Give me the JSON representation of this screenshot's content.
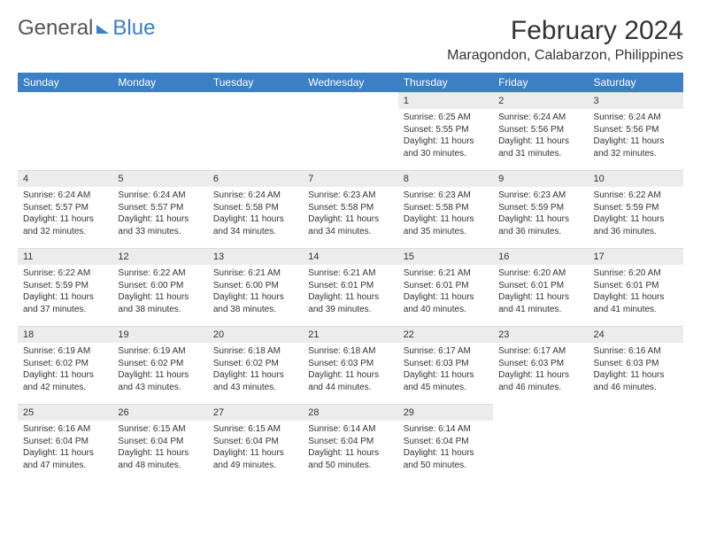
{
  "logo": {
    "part1": "General",
    "part2": "Blue"
  },
  "title": "February 2024",
  "location": "Maragondon, Calabarzon, Philippines",
  "colors": {
    "header_bg": "#3b7fc4",
    "header_text": "#ffffff",
    "daynum_bg": "#ececec",
    "text": "#333333",
    "page_bg": "#ffffff"
  },
  "weekdays": [
    "Sunday",
    "Monday",
    "Tuesday",
    "Wednesday",
    "Thursday",
    "Friday",
    "Saturday"
  ],
  "weeks": [
    [
      {
        "empty": true
      },
      {
        "empty": true
      },
      {
        "empty": true
      },
      {
        "empty": true
      },
      {
        "day": "1",
        "sunrise": "Sunrise: 6:25 AM",
        "sunset": "Sunset: 5:55 PM",
        "daylight": "Daylight: 11 hours and 30 minutes."
      },
      {
        "day": "2",
        "sunrise": "Sunrise: 6:24 AM",
        "sunset": "Sunset: 5:56 PM",
        "daylight": "Daylight: 11 hours and 31 minutes."
      },
      {
        "day": "3",
        "sunrise": "Sunrise: 6:24 AM",
        "sunset": "Sunset: 5:56 PM",
        "daylight": "Daylight: 11 hours and 32 minutes."
      }
    ],
    [
      {
        "day": "4",
        "sunrise": "Sunrise: 6:24 AM",
        "sunset": "Sunset: 5:57 PM",
        "daylight": "Daylight: 11 hours and 32 minutes."
      },
      {
        "day": "5",
        "sunrise": "Sunrise: 6:24 AM",
        "sunset": "Sunset: 5:57 PM",
        "daylight": "Daylight: 11 hours and 33 minutes."
      },
      {
        "day": "6",
        "sunrise": "Sunrise: 6:24 AM",
        "sunset": "Sunset: 5:58 PM",
        "daylight": "Daylight: 11 hours and 34 minutes."
      },
      {
        "day": "7",
        "sunrise": "Sunrise: 6:23 AM",
        "sunset": "Sunset: 5:58 PM",
        "daylight": "Daylight: 11 hours and 34 minutes."
      },
      {
        "day": "8",
        "sunrise": "Sunrise: 6:23 AM",
        "sunset": "Sunset: 5:58 PM",
        "daylight": "Daylight: 11 hours and 35 minutes."
      },
      {
        "day": "9",
        "sunrise": "Sunrise: 6:23 AM",
        "sunset": "Sunset: 5:59 PM",
        "daylight": "Daylight: 11 hours and 36 minutes."
      },
      {
        "day": "10",
        "sunrise": "Sunrise: 6:22 AM",
        "sunset": "Sunset: 5:59 PM",
        "daylight": "Daylight: 11 hours and 36 minutes."
      }
    ],
    [
      {
        "day": "11",
        "sunrise": "Sunrise: 6:22 AM",
        "sunset": "Sunset: 5:59 PM",
        "daylight": "Daylight: 11 hours and 37 minutes."
      },
      {
        "day": "12",
        "sunrise": "Sunrise: 6:22 AM",
        "sunset": "Sunset: 6:00 PM",
        "daylight": "Daylight: 11 hours and 38 minutes."
      },
      {
        "day": "13",
        "sunrise": "Sunrise: 6:21 AM",
        "sunset": "Sunset: 6:00 PM",
        "daylight": "Daylight: 11 hours and 38 minutes."
      },
      {
        "day": "14",
        "sunrise": "Sunrise: 6:21 AM",
        "sunset": "Sunset: 6:01 PM",
        "daylight": "Daylight: 11 hours and 39 minutes."
      },
      {
        "day": "15",
        "sunrise": "Sunrise: 6:21 AM",
        "sunset": "Sunset: 6:01 PM",
        "daylight": "Daylight: 11 hours and 40 minutes."
      },
      {
        "day": "16",
        "sunrise": "Sunrise: 6:20 AM",
        "sunset": "Sunset: 6:01 PM",
        "daylight": "Daylight: 11 hours and 41 minutes."
      },
      {
        "day": "17",
        "sunrise": "Sunrise: 6:20 AM",
        "sunset": "Sunset: 6:01 PM",
        "daylight": "Daylight: 11 hours and 41 minutes."
      }
    ],
    [
      {
        "day": "18",
        "sunrise": "Sunrise: 6:19 AM",
        "sunset": "Sunset: 6:02 PM",
        "daylight": "Daylight: 11 hours and 42 minutes."
      },
      {
        "day": "19",
        "sunrise": "Sunrise: 6:19 AM",
        "sunset": "Sunset: 6:02 PM",
        "daylight": "Daylight: 11 hours and 43 minutes."
      },
      {
        "day": "20",
        "sunrise": "Sunrise: 6:18 AM",
        "sunset": "Sunset: 6:02 PM",
        "daylight": "Daylight: 11 hours and 43 minutes."
      },
      {
        "day": "21",
        "sunrise": "Sunrise: 6:18 AM",
        "sunset": "Sunset: 6:03 PM",
        "daylight": "Daylight: 11 hours and 44 minutes."
      },
      {
        "day": "22",
        "sunrise": "Sunrise: 6:17 AM",
        "sunset": "Sunset: 6:03 PM",
        "daylight": "Daylight: 11 hours and 45 minutes."
      },
      {
        "day": "23",
        "sunrise": "Sunrise: 6:17 AM",
        "sunset": "Sunset: 6:03 PM",
        "daylight": "Daylight: 11 hours and 46 minutes."
      },
      {
        "day": "24",
        "sunrise": "Sunrise: 6:16 AM",
        "sunset": "Sunset: 6:03 PM",
        "daylight": "Daylight: 11 hours and 46 minutes."
      }
    ],
    [
      {
        "day": "25",
        "sunrise": "Sunrise: 6:16 AM",
        "sunset": "Sunset: 6:04 PM",
        "daylight": "Daylight: 11 hours and 47 minutes."
      },
      {
        "day": "26",
        "sunrise": "Sunrise: 6:15 AM",
        "sunset": "Sunset: 6:04 PM",
        "daylight": "Daylight: 11 hours and 48 minutes."
      },
      {
        "day": "27",
        "sunrise": "Sunrise: 6:15 AM",
        "sunset": "Sunset: 6:04 PM",
        "daylight": "Daylight: 11 hours and 49 minutes."
      },
      {
        "day": "28",
        "sunrise": "Sunrise: 6:14 AM",
        "sunset": "Sunset: 6:04 PM",
        "daylight": "Daylight: 11 hours and 50 minutes."
      },
      {
        "day": "29",
        "sunrise": "Sunrise: 6:14 AM",
        "sunset": "Sunset: 6:04 PM",
        "daylight": "Daylight: 11 hours and 50 minutes."
      },
      {
        "empty": true
      },
      {
        "empty": true
      }
    ]
  ]
}
